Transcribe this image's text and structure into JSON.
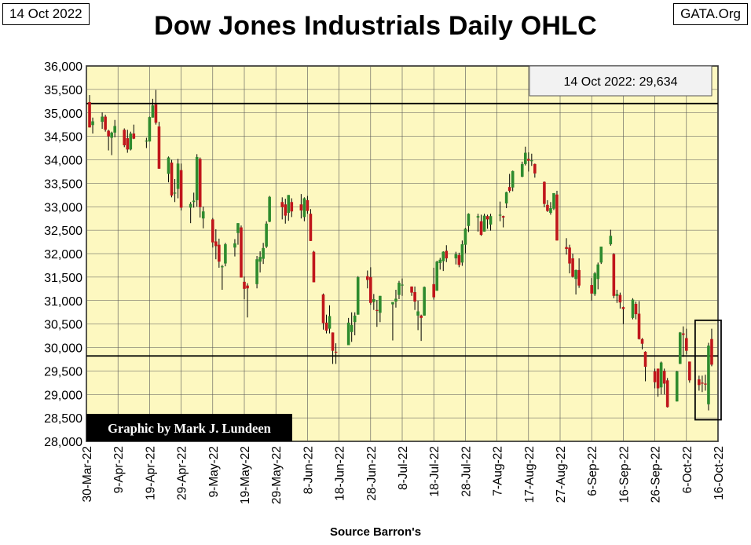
{
  "header": {
    "date_label": "14 Oct 2022",
    "site_label": "GATA.Org",
    "title": "Dow Jones Industrials Daily OHLC"
  },
  "annotation": {
    "last_value": "14 Oct 2022: 29,634"
  },
  "credit": "Graphic by Mark J. Lundeen",
  "source": "Source Barron's",
  "chart_data": {
    "type": "ohlc",
    "title": "Dow Jones Industrials Daily OHLC",
    "y_ticks": [
      "28,000",
      "28,500",
      "29,000",
      "29,500",
      "30,000",
      "30,500",
      "31,000",
      "31,500",
      "32,000",
      "32,500",
      "33,000",
      "33,500",
      "34,000",
      "34,500",
      "35,000",
      "35,500",
      "36,000"
    ],
    "ylim": [
      28000,
      36000
    ],
    "x_ticks": [
      "30-Mar-22",
      "9-Apr-22",
      "19-Apr-22",
      "29-Apr-22",
      "9-May-22",
      "19-May-22",
      "29-May-22",
      "8-Jun-22",
      "18-Jun-22",
      "28-Jun-22",
      "8-Jul-22",
      "18-Jul-22",
      "28-Jul-22",
      "7-Aug-22",
      "17-Aug-22",
      "27-Aug-22",
      "6-Sep-22",
      "16-Sep-22",
      "26-Sep-22",
      "6-Oct-22",
      "16-Oct-22"
    ],
    "xlim": [
      "2022-03-30",
      "2022-10-16"
    ],
    "reference_lines": [
      35200,
      29820
    ],
    "highlight_box": {
      "from": "2022-10-10",
      "to": "2022-10-14",
      "low": 28460,
      "high": 30580
    },
    "colors": {
      "up": "#2e8b2e",
      "down": "#c0161b",
      "plot_bg": "#fdf8c0",
      "grid": "#555555"
    },
    "grid": true,
    "series": [
      {
        "d": "2022-03-31",
        "o": 35230,
        "h": 35380,
        "l": 34690,
        "c": 34690
      },
      {
        "d": "2022-04-01",
        "o": 34740,
        "h": 34900,
        "l": 34560,
        "c": 34820
      },
      {
        "d": "2022-04-04",
        "o": 34810,
        "h": 35010,
        "l": 34660,
        "c": 34920
      },
      {
        "d": "2022-04-05",
        "o": 34920,
        "h": 34960,
        "l": 34600,
        "c": 34640
      },
      {
        "d": "2022-04-06",
        "o": 34620,
        "h": 34640,
        "l": 34200,
        "c": 34500
      },
      {
        "d": "2022-04-07",
        "o": 34470,
        "h": 34600,
        "l": 34100,
        "c": 34580
      },
      {
        "d": "2022-04-08",
        "o": 34580,
        "h": 34850,
        "l": 34480,
        "c": 34720
      },
      {
        "d": "2022-04-11",
        "o": 34640,
        "h": 34670,
        "l": 34270,
        "c": 34310
      },
      {
        "d": "2022-04-12",
        "o": 34460,
        "h": 34640,
        "l": 34150,
        "c": 34220
      },
      {
        "d": "2022-04-13",
        "o": 34220,
        "h": 34600,
        "l": 34200,
        "c": 34560
      },
      {
        "d": "2022-04-14",
        "o": 34560,
        "h": 34750,
        "l": 34440,
        "c": 34450
      },
      {
        "d": "2022-04-18",
        "o": 34400,
        "h": 34470,
        "l": 34250,
        "c": 34410
      },
      {
        "d": "2022-04-19",
        "o": 34390,
        "h": 34920,
        "l": 34390,
        "c": 34910
      },
      {
        "d": "2022-04-20",
        "o": 34900,
        "h": 35300,
        "l": 34900,
        "c": 35160
      },
      {
        "d": "2022-04-21",
        "o": 35180,
        "h": 35490,
        "l": 34750,
        "c": 34790
      },
      {
        "d": "2022-04-22",
        "o": 34710,
        "h": 34810,
        "l": 33810,
        "c": 33810
      },
      {
        "d": "2022-04-25",
        "o": 33700,
        "h": 34070,
        "l": 33520,
        "c": 34050
      },
      {
        "d": "2022-04-26",
        "o": 33940,
        "h": 34000,
        "l": 33200,
        "c": 33240
      },
      {
        "d": "2022-04-27",
        "o": 33280,
        "h": 33590,
        "l": 33100,
        "c": 33300
      },
      {
        "d": "2022-04-28",
        "o": 33380,
        "h": 34020,
        "l": 33180,
        "c": 33920
      },
      {
        "d": "2022-04-29",
        "o": 33780,
        "h": 33920,
        "l": 32920,
        "c": 32980
      },
      {
        "d": "2022-05-02",
        "o": 32980,
        "h": 33100,
        "l": 32650,
        "c": 33060
      },
      {
        "d": "2022-05-03",
        "o": 33100,
        "h": 33300,
        "l": 32980,
        "c": 33130
      },
      {
        "d": "2022-05-04",
        "o": 33140,
        "h": 34120,
        "l": 33000,
        "c": 34060
      },
      {
        "d": "2022-05-05",
        "o": 34020,
        "h": 34050,
        "l": 32770,
        "c": 32990
      },
      {
        "d": "2022-05-06",
        "o": 32750,
        "h": 33000,
        "l": 32540,
        "c": 32900
      },
      {
        "d": "2022-05-09",
        "o": 32730,
        "h": 32760,
        "l": 32130,
        "c": 32240
      },
      {
        "d": "2022-05-10",
        "o": 32260,
        "h": 32520,
        "l": 31880,
        "c": 32160
      },
      {
        "d": "2022-05-11",
        "o": 32190,
        "h": 32320,
        "l": 31700,
        "c": 31830
      },
      {
        "d": "2022-05-12",
        "o": 31720,
        "h": 31760,
        "l": 31230,
        "c": 31730
      },
      {
        "d": "2022-05-13",
        "o": 31790,
        "h": 32230,
        "l": 31730,
        "c": 32200
      },
      {
        "d": "2022-05-16",
        "o": 32130,
        "h": 32310,
        "l": 31940,
        "c": 32220
      },
      {
        "d": "2022-05-17",
        "o": 32440,
        "h": 32650,
        "l": 32190,
        "c": 32650
      },
      {
        "d": "2022-05-18",
        "o": 32560,
        "h": 32600,
        "l": 31490,
        "c": 31490
      },
      {
        "d": "2022-05-19",
        "o": 31400,
        "h": 31510,
        "l": 31030,
        "c": 31250
      },
      {
        "d": "2022-05-20",
        "o": 31320,
        "h": 31370,
        "l": 30640,
        "c": 31260
      },
      {
        "d": "2022-05-23",
        "o": 31350,
        "h": 31950,
        "l": 31260,
        "c": 31880
      },
      {
        "d": "2022-05-24",
        "o": 31830,
        "h": 32050,
        "l": 31600,
        "c": 31930
      },
      {
        "d": "2022-05-25",
        "o": 31890,
        "h": 32230,
        "l": 31780,
        "c": 32120
      },
      {
        "d": "2022-05-26",
        "o": 32150,
        "h": 32690,
        "l": 32120,
        "c": 32640
      },
      {
        "d": "2022-05-27",
        "o": 32680,
        "h": 33230,
        "l": 32670,
        "c": 33210
      },
      {
        "d": "2022-05-31",
        "o": 33100,
        "h": 33200,
        "l": 32730,
        "c": 32990
      },
      {
        "d": "2022-06-01",
        "o": 33050,
        "h": 33170,
        "l": 32640,
        "c": 32810
      },
      {
        "d": "2022-06-02",
        "o": 32870,
        "h": 33250,
        "l": 32700,
        "c": 33250
      },
      {
        "d": "2022-06-03",
        "o": 33100,
        "h": 33180,
        "l": 32780,
        "c": 32900
      },
      {
        "d": "2022-06-06",
        "o": 33050,
        "h": 33270,
        "l": 32750,
        "c": 32920
      },
      {
        "d": "2022-06-07",
        "o": 32780,
        "h": 33200,
        "l": 32690,
        "c": 33180
      },
      {
        "d": "2022-06-08",
        "o": 33140,
        "h": 33230,
        "l": 32850,
        "c": 32910
      },
      {
        "d": "2022-06-09",
        "o": 32850,
        "h": 32950,
        "l": 32270,
        "c": 32270
      },
      {
        "d": "2022-06-10",
        "o": 32040,
        "h": 32060,
        "l": 31390,
        "c": 31390
      },
      {
        "d": "2022-06-13",
        "o": 31130,
        "h": 31150,
        "l": 30380,
        "c": 30520
      },
      {
        "d": "2022-06-14",
        "o": 30530,
        "h": 30700,
        "l": 30300,
        "c": 30360
      },
      {
        "d": "2022-06-15",
        "o": 30400,
        "h": 30900,
        "l": 30300,
        "c": 30670
      },
      {
        "d": "2022-06-16",
        "o": 30320,
        "h": 30320,
        "l": 29650,
        "c": 29930
      },
      {
        "d": "2022-06-17",
        "o": 29910,
        "h": 30090,
        "l": 29650,
        "c": 29890
      },
      {
        "d": "2022-06-21",
        "o": 30050,
        "h": 30630,
        "l": 30050,
        "c": 30530
      },
      {
        "d": "2022-06-22",
        "o": 30330,
        "h": 30750,
        "l": 30120,
        "c": 30480
      },
      {
        "d": "2022-06-23",
        "o": 30540,
        "h": 30750,
        "l": 30260,
        "c": 30680
      },
      {
        "d": "2022-06-24",
        "o": 30700,
        "h": 31520,
        "l": 30700,
        "c": 31500
      },
      {
        "d": "2022-06-27",
        "o": 31520,
        "h": 31640,
        "l": 31260,
        "c": 31440
      },
      {
        "d": "2022-06-28",
        "o": 31500,
        "h": 31710,
        "l": 30910,
        "c": 30950
      },
      {
        "d": "2022-06-29",
        "o": 30970,
        "h": 31140,
        "l": 30800,
        "c": 31030
      },
      {
        "d": "2022-06-30",
        "o": 30800,
        "h": 31010,
        "l": 30440,
        "c": 30780
      },
      {
        "d": "2022-07-01",
        "o": 30740,
        "h": 31100,
        "l": 30540,
        "c": 31100
      },
      {
        "d": "2022-07-05",
        "o": 30920,
        "h": 30950,
        "l": 30150,
        "c": 30970
      },
      {
        "d": "2022-07-06",
        "o": 30980,
        "h": 31230,
        "l": 30850,
        "c": 31040
      },
      {
        "d": "2022-07-07",
        "o": 31120,
        "h": 31420,
        "l": 31030,
        "c": 31380
      },
      {
        "d": "2022-07-08",
        "o": 31340,
        "h": 31470,
        "l": 31100,
        "c": 31340
      },
      {
        "d": "2022-07-11",
        "o": 31300,
        "h": 31300,
        "l": 31100,
        "c": 31170
      },
      {
        "d": "2022-07-12",
        "o": 31180,
        "h": 31300,
        "l": 30800,
        "c": 30980
      },
      {
        "d": "2022-07-13",
        "o": 30680,
        "h": 31000,
        "l": 30370,
        "c": 30770
      },
      {
        "d": "2022-07-14",
        "o": 30680,
        "h": 30700,
        "l": 30140,
        "c": 30630
      },
      {
        "d": "2022-07-15",
        "o": 30680,
        "h": 31300,
        "l": 30680,
        "c": 31290
      },
      {
        "d": "2022-07-18",
        "o": 31350,
        "h": 31700,
        "l": 31020,
        "c": 31070
      },
      {
        "d": "2022-07-19",
        "o": 31210,
        "h": 31850,
        "l": 31210,
        "c": 31830
      },
      {
        "d": "2022-07-20",
        "o": 31800,
        "h": 31910,
        "l": 31660,
        "c": 31870
      },
      {
        "d": "2022-07-21",
        "o": 31840,
        "h": 32050,
        "l": 31630,
        "c": 32040
      },
      {
        "d": "2022-07-22",
        "o": 32060,
        "h": 32180,
        "l": 31820,
        "c": 31900
      },
      {
        "d": "2022-07-25",
        "o": 31900,
        "h": 32040,
        "l": 31770,
        "c": 31990
      },
      {
        "d": "2022-07-26",
        "o": 31970,
        "h": 32020,
        "l": 31710,
        "c": 31760
      },
      {
        "d": "2022-07-27",
        "o": 31810,
        "h": 32280,
        "l": 31740,
        "c": 32200
      },
      {
        "d": "2022-07-28",
        "o": 32190,
        "h": 32550,
        "l": 32010,
        "c": 32530
      },
      {
        "d": "2022-07-29",
        "o": 32590,
        "h": 32860,
        "l": 32460,
        "c": 32850
      },
      {
        "d": "2022-08-01",
        "o": 32770,
        "h": 32850,
        "l": 32470,
        "c": 32800
      },
      {
        "d": "2022-08-02",
        "o": 32690,
        "h": 32830,
        "l": 32380,
        "c": 32400
      },
      {
        "d": "2022-08-03",
        "o": 32470,
        "h": 32850,
        "l": 32470,
        "c": 32810
      },
      {
        "d": "2022-08-04",
        "o": 32800,
        "h": 32830,
        "l": 32530,
        "c": 32730
      },
      {
        "d": "2022-08-05",
        "o": 32620,
        "h": 32850,
        "l": 32490,
        "c": 32800
      },
      {
        "d": "2022-08-08",
        "o": 32830,
        "h": 33110,
        "l": 32690,
        "c": 32830
      },
      {
        "d": "2022-08-09",
        "o": 32800,
        "h": 32810,
        "l": 32560,
        "c": 32770
      },
      {
        "d": "2022-08-10",
        "o": 33070,
        "h": 33320,
        "l": 32970,
        "c": 33310
      },
      {
        "d": "2022-08-11",
        "o": 33420,
        "h": 33700,
        "l": 33300,
        "c": 33340
      },
      {
        "d": "2022-08-12",
        "o": 33410,
        "h": 33770,
        "l": 33330,
        "c": 33760
      },
      {
        "d": "2022-08-15",
        "o": 33640,
        "h": 33960,
        "l": 33630,
        "c": 33910
      },
      {
        "d": "2022-08-16",
        "o": 33910,
        "h": 34280,
        "l": 33880,
        "c": 34150
      },
      {
        "d": "2022-08-17",
        "o": 34020,
        "h": 34160,
        "l": 33750,
        "c": 33980
      },
      {
        "d": "2022-08-18",
        "o": 33980,
        "h": 34130,
        "l": 33870,
        "c": 33990
      },
      {
        "d": "2022-08-19",
        "o": 33910,
        "h": 33920,
        "l": 33620,
        "c": 33710
      },
      {
        "d": "2022-08-22",
        "o": 33530,
        "h": 33540,
        "l": 32990,
        "c": 33060
      },
      {
        "d": "2022-08-23",
        "o": 33040,
        "h": 33140,
        "l": 32890,
        "c": 32910
      },
      {
        "d": "2022-08-24",
        "o": 32870,
        "h": 33100,
        "l": 32830,
        "c": 32970
      },
      {
        "d": "2022-08-25",
        "o": 32960,
        "h": 33290,
        "l": 32930,
        "c": 33290
      },
      {
        "d": "2022-08-26",
        "o": 33260,
        "h": 33340,
        "l": 32280,
        "c": 32280
      },
      {
        "d": "2022-08-29",
        "o": 32140,
        "h": 32330,
        "l": 31980,
        "c": 32100
      },
      {
        "d": "2022-08-30",
        "o": 32130,
        "h": 32190,
        "l": 31580,
        "c": 31790
      },
      {
        "d": "2022-08-31",
        "o": 31900,
        "h": 32000,
        "l": 31490,
        "c": 31510
      },
      {
        "d": "2022-09-01",
        "o": 31460,
        "h": 31660,
        "l": 31130,
        "c": 31650
      },
      {
        "d": "2022-09-02",
        "o": 31650,
        "h": 31900,
        "l": 31270,
        "c": 31320
      },
      {
        "d": "2022-09-06",
        "o": 31330,
        "h": 31480,
        "l": 31000,
        "c": 31150
      },
      {
        "d": "2022-09-07",
        "o": 31140,
        "h": 31610,
        "l": 31100,
        "c": 31580
      },
      {
        "d": "2022-09-08",
        "o": 31460,
        "h": 31810,
        "l": 31240,
        "c": 31770
      },
      {
        "d": "2022-09-09",
        "o": 31810,
        "h": 32150,
        "l": 31780,
        "c": 32150
      },
      {
        "d": "2022-09-12",
        "o": 32200,
        "h": 32510,
        "l": 32170,
        "c": 32380
      },
      {
        "d": "2022-09-13",
        "o": 31990,
        "h": 32010,
        "l": 31050,
        "c": 31100
      },
      {
        "d": "2022-09-14",
        "o": 31100,
        "h": 31230,
        "l": 30950,
        "c": 31140
      },
      {
        "d": "2022-09-15",
        "o": 31120,
        "h": 31170,
        "l": 30830,
        "c": 30960
      },
      {
        "d": "2022-09-16",
        "o": 30860,
        "h": 30870,
        "l": 30500,
        "c": 30820
      },
      {
        "d": "2022-09-19",
        "o": 30630,
        "h": 31050,
        "l": 30600,
        "c": 31020
      },
      {
        "d": "2022-09-20",
        "o": 30930,
        "h": 30980,
        "l": 30600,
        "c": 30710
      },
      {
        "d": "2022-09-21",
        "o": 30720,
        "h": 30990,
        "l": 30170,
        "c": 30180
      },
      {
        "d": "2022-09-22",
        "o": 30180,
        "h": 30200,
        "l": 29960,
        "c": 30080
      },
      {
        "d": "2022-09-23",
        "o": 29910,
        "h": 29920,
        "l": 29280,
        "c": 29590
      },
      {
        "d": "2022-09-26",
        "o": 29490,
        "h": 29550,
        "l": 29130,
        "c": 29260
      },
      {
        "d": "2022-09-27",
        "o": 29550,
        "h": 29500,
        "l": 28950,
        "c": 29130
      },
      {
        "d": "2022-09-28",
        "o": 29150,
        "h": 29700,
        "l": 29000,
        "c": 29680
      },
      {
        "d": "2022-09-29",
        "o": 29500,
        "h": 29550,
        "l": 29000,
        "c": 29230
      },
      {
        "d": "2022-09-30",
        "o": 29300,
        "h": 29350,
        "l": 28720,
        "c": 28730
      },
      {
        "d": "2022-10-03",
        "o": 28850,
        "h": 29500,
        "l": 28850,
        "c": 29490
      },
      {
        "d": "2022-10-04",
        "o": 29650,
        "h": 30330,
        "l": 29650,
        "c": 30320
      },
      {
        "d": "2022-10-05",
        "o": 30300,
        "h": 30450,
        "l": 29800,
        "c": 30270
      },
      {
        "d": "2022-10-06",
        "o": 30200,
        "h": 30400,
        "l": 29850,
        "c": 29930
      },
      {
        "d": "2022-10-07",
        "o": 29700,
        "h": 29700,
        "l": 29250,
        "c": 29300
      },
      {
        "d": "2022-10-10",
        "o": 29320,
        "h": 29400,
        "l": 29080,
        "c": 29200
      },
      {
        "d": "2022-10-11",
        "o": 29250,
        "h": 29400,
        "l": 29050,
        "c": 29240
      },
      {
        "d": "2022-10-12",
        "o": 29230,
        "h": 29420,
        "l": 29080,
        "c": 29210
      },
      {
        "d": "2022-10-13",
        "o": 28790,
        "h": 30100,
        "l": 28660,
        "c": 30040
      },
      {
        "d": "2022-10-14",
        "o": 30180,
        "h": 30400,
        "l": 29600,
        "c": 29634
      }
    ]
  }
}
